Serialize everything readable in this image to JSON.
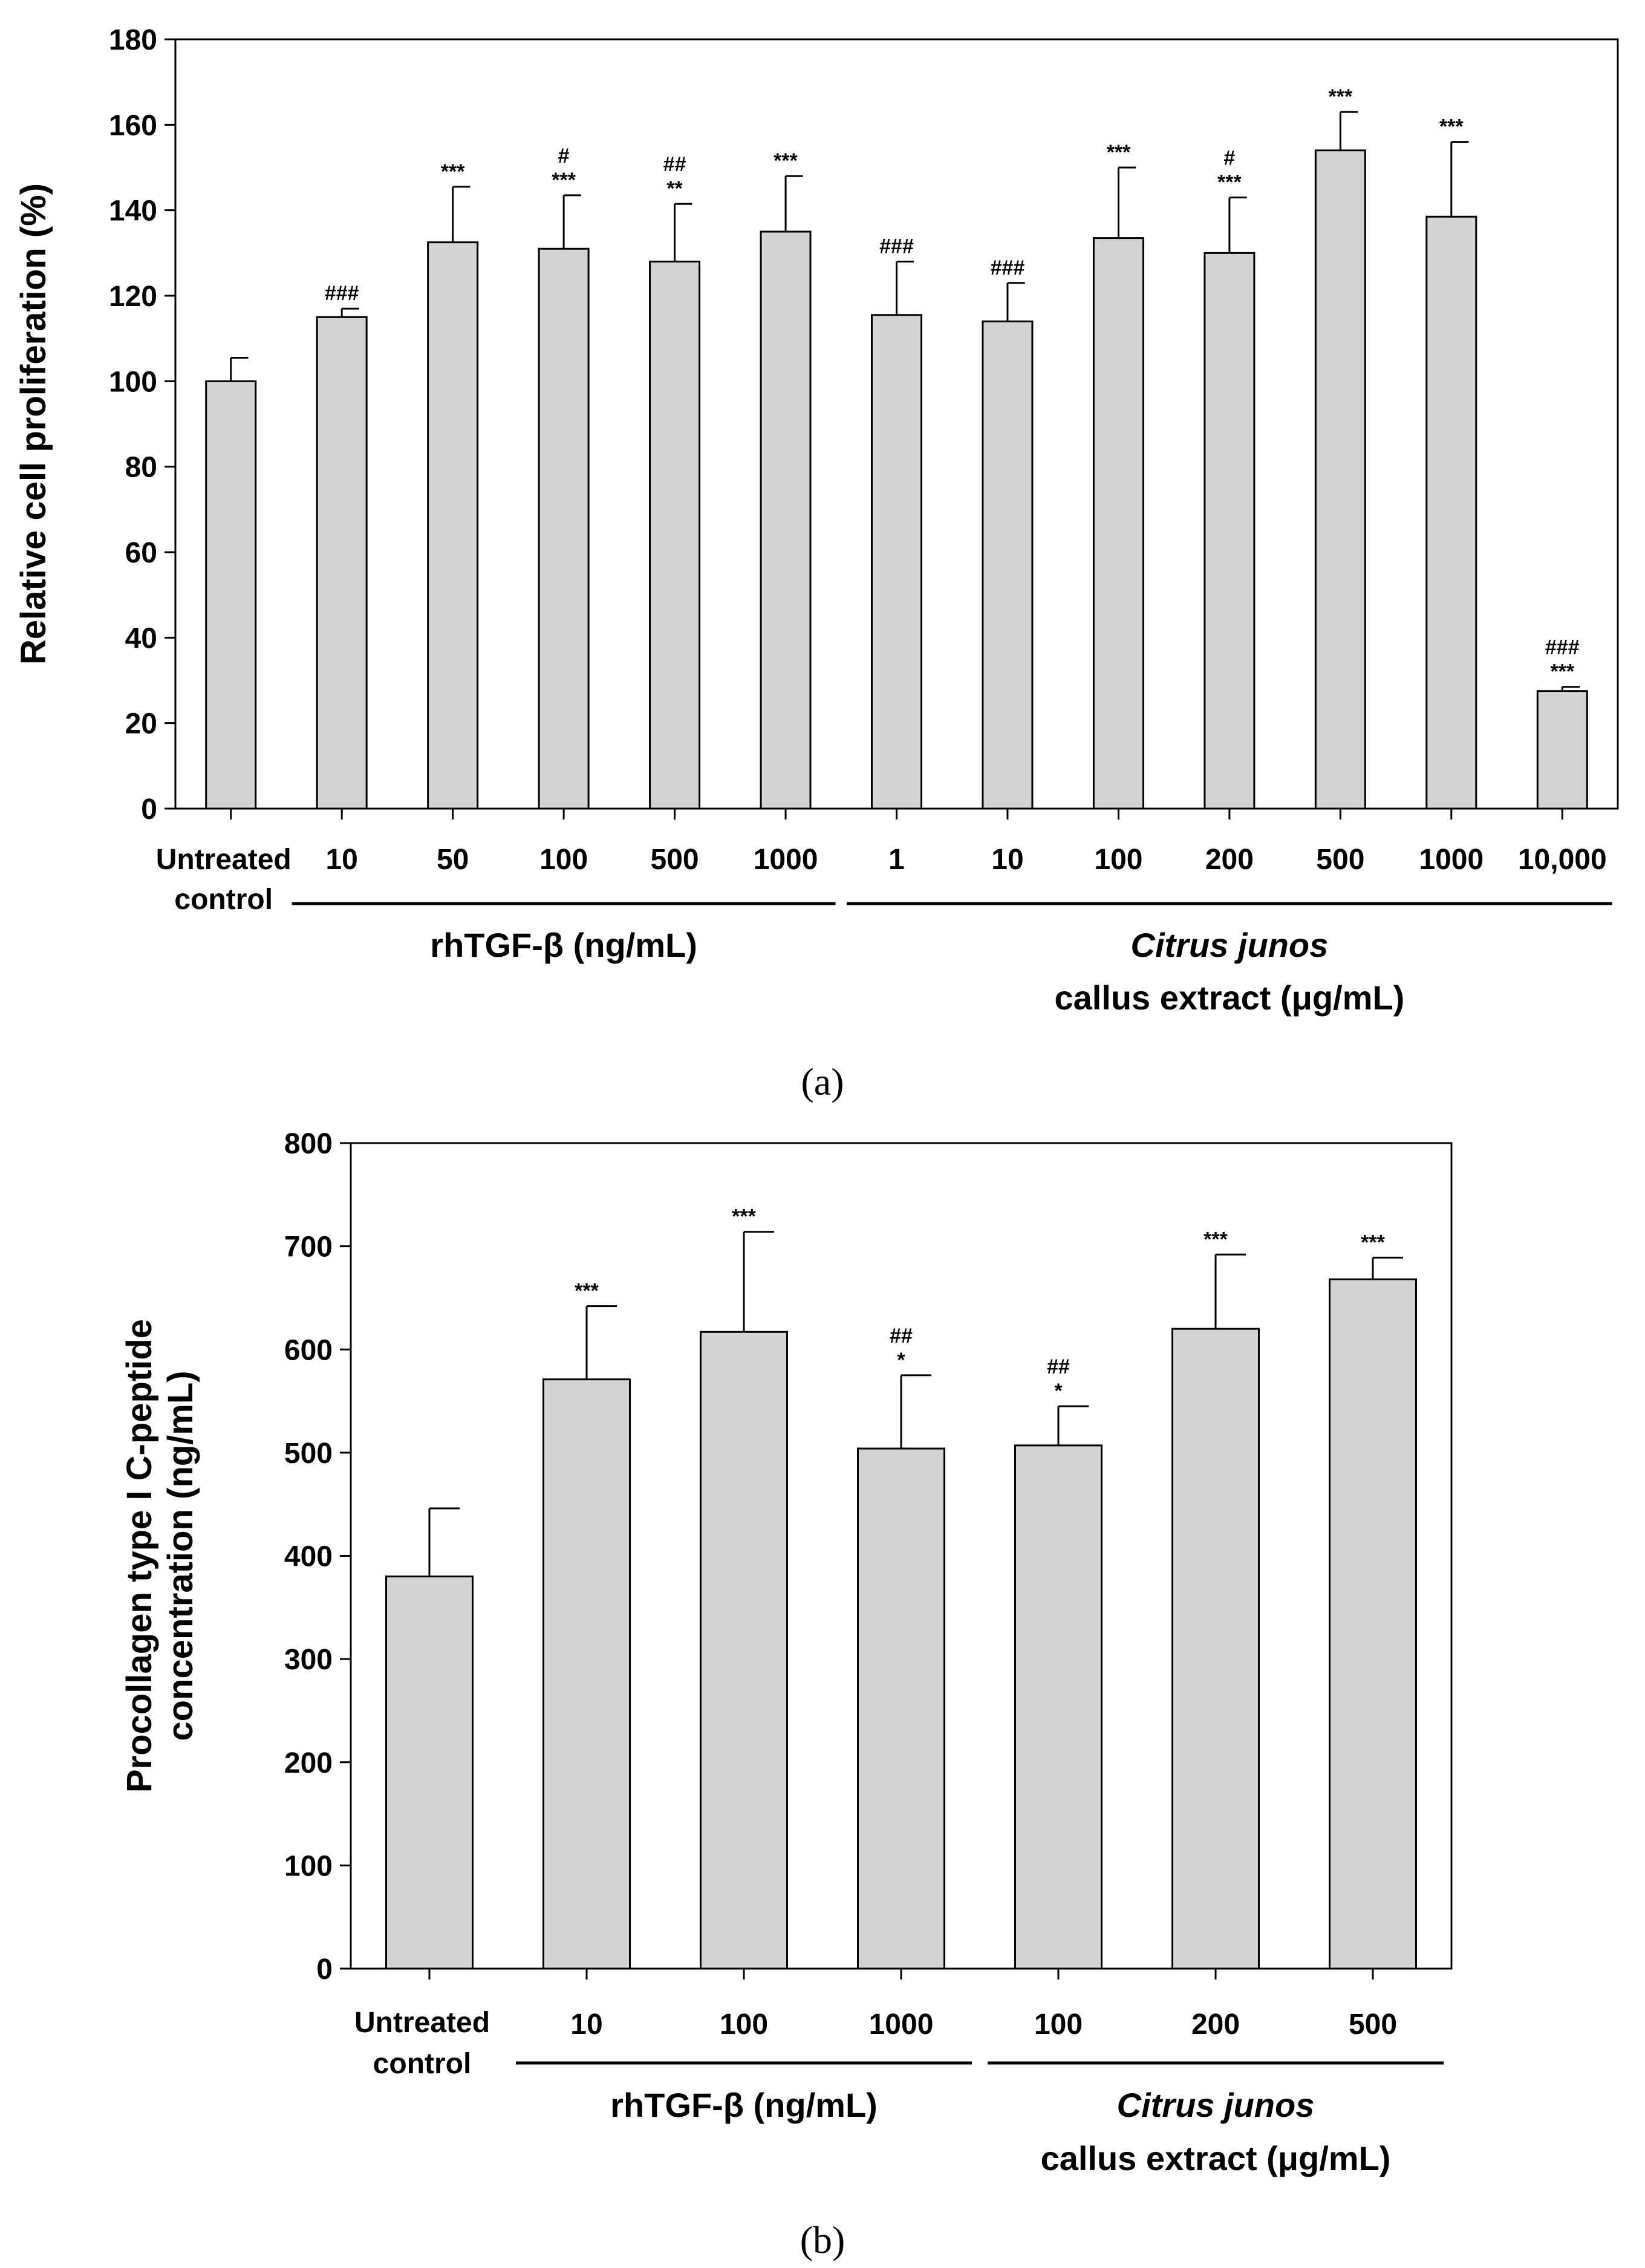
{
  "colors": {
    "bar_fill": "#d3d3d3",
    "axis": "#000000"
  },
  "chart_data": [
    {
      "type": "bar",
      "panel_label": "(a)",
      "ylabel": "Relative cell proliferation (%)",
      "ylim": [
        0,
        180
      ],
      "yticks": [
        0,
        20,
        40,
        60,
        80,
        100,
        120,
        140,
        160,
        180
      ],
      "control_label": [
        "Untreated",
        "control"
      ],
      "categories": [
        "Untreated control",
        "10",
        "50",
        "100",
        "500",
        "1000",
        "1",
        "10",
        "100",
        "200",
        "500",
        "1000",
        "10,000"
      ],
      "tick_labels": [
        "",
        "10",
        "50",
        "100",
        "500",
        "1000",
        "1",
        "10",
        "100",
        "200",
        "500",
        "1000",
        "10,000"
      ],
      "values": [
        100,
        115,
        132.5,
        131,
        128,
        135,
        115.5,
        114,
        133.5,
        130,
        154,
        138.5,
        27.5
      ],
      "errors": [
        5.5,
        2,
        13,
        12.5,
        13.5,
        13,
        12.5,
        9,
        16.5,
        13,
        9,
        17.5,
        1
      ],
      "significance": [
        [],
        [
          "###"
        ],
        [
          "***"
        ],
        [
          "#",
          "***"
        ],
        [
          "##",
          "**"
        ],
        [
          "***"
        ],
        [
          "###"
        ],
        [
          "###"
        ],
        [
          "***"
        ],
        [
          "#",
          "***"
        ],
        [
          "***"
        ],
        [
          "***"
        ],
        [
          "###",
          "***"
        ]
      ],
      "groups": [
        {
          "label_parts": [
            "rhTGF-β (ng/mL)"
          ],
          "italic_line": "",
          "start": 1,
          "end": 5
        },
        {
          "label_parts": [
            "callus extract (μg/mL)"
          ],
          "italic_line": "Citrus junos",
          "start": 6,
          "end": 12
        }
      ]
    },
    {
      "type": "bar",
      "panel_label": "(b)",
      "ylabel": "Procollagen type I C-peptide concentration (ng/mL)",
      "ylabel_lines": [
        "Procollagen type I C-peptide",
        "concentration (ng/mL)"
      ],
      "ylim": [
        0,
        800
      ],
      "yticks": [
        0,
        100,
        200,
        300,
        400,
        500,
        600,
        700,
        800
      ],
      "control_label": [
        "Untreated",
        "control"
      ],
      "categories": [
        "Untreated control",
        "10",
        "100",
        "1000",
        "100",
        "200",
        "500"
      ],
      "tick_labels": [
        "",
        "10",
        "100",
        "1000",
        "100",
        "200",
        "500"
      ],
      "values": [
        380,
        571,
        617,
        504,
        507,
        620,
        668
      ],
      "errors": [
        66,
        71,
        97,
        71,
        38,
        72,
        21
      ],
      "significance": [
        [],
        [
          "***"
        ],
        [
          "***"
        ],
        [
          "##",
          "*"
        ],
        [
          "##",
          "*"
        ],
        [
          "***"
        ],
        [
          "***"
        ]
      ],
      "groups": [
        {
          "label_parts": [
            "rhTGF-β (ng/mL)"
          ],
          "italic_line": "",
          "start": 1,
          "end": 3
        },
        {
          "label_parts": [
            "callus extract (μg/mL)"
          ],
          "italic_line": "Citrus junos",
          "start": 4,
          "end": 6
        }
      ]
    }
  ]
}
